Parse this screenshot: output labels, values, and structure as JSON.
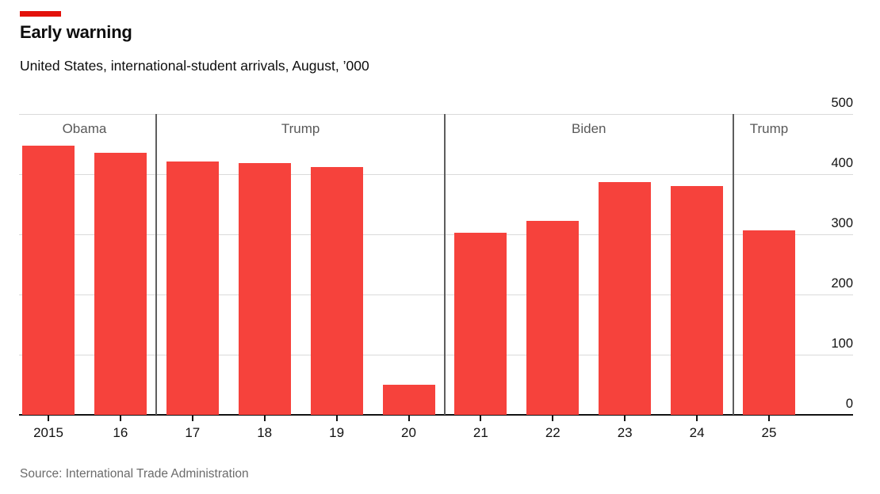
{
  "header": {
    "title": "Early warning",
    "subtitle": "United States, international-student arrivals, August, ’000"
  },
  "footer": {
    "source": "Source: International Trade Administration"
  },
  "chart_data": {
    "type": "bar",
    "title": "Early warning",
    "subtitle": "United States, international-student arrivals, August, ’000",
    "unit": "thousands",
    "categories": [
      "2015",
      "16",
      "17",
      "18",
      "19",
      "20",
      "21",
      "22",
      "23",
      "24",
      "25"
    ],
    "values": [
      448,
      436,
      421,
      418,
      412,
      50,
      303,
      322,
      387,
      380,
      307
    ],
    "president_bands": [
      {
        "label": "Obama",
        "start": 0,
        "end": 1
      },
      {
        "label": "Trump",
        "start": 2,
        "end": 5
      },
      {
        "label": "Biden",
        "start": 6,
        "end": 9
      },
      {
        "label": "Trump",
        "start": 10,
        "end": 10
      }
    ],
    "y_ticks": [
      0,
      100,
      200,
      300,
      400,
      500
    ],
    "ylim": [
      0,
      500
    ],
    "y_axis_side": "right",
    "grid": "horizontal",
    "legend": "none",
    "colors": {
      "bar": "#F6423C",
      "brand_tab": "#E3120B",
      "grid": "#DADADA",
      "axis": "#121212",
      "separator": "#5E5E5E",
      "president_label": "#595959",
      "source_text": "#6B6B6B"
    }
  }
}
